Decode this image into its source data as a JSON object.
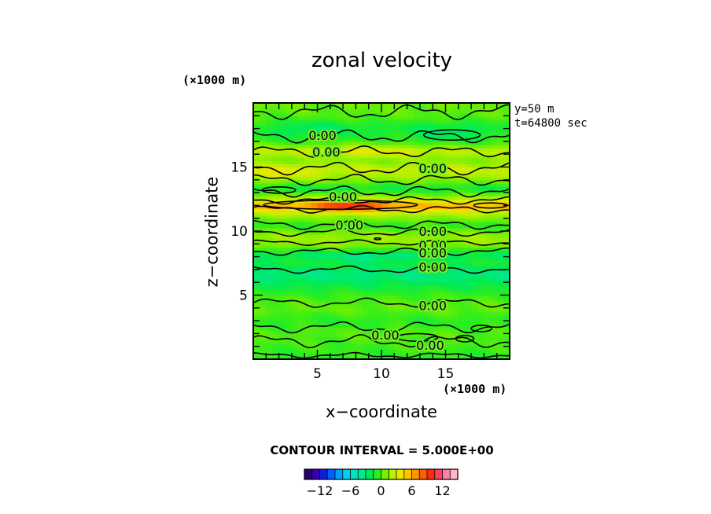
{
  "chart_data": {
    "type": "contour",
    "title": "zonal velocity",
    "xlabel": "x−coordinate",
    "ylabel": "z−coordinate",
    "x_unit": "(×1000 m)",
    "y_unit": "(×1000 m)",
    "xlim": [
      0,
      20
    ],
    "ylim": [
      0,
      20
    ],
    "x_ticks": [
      5,
      10,
      15
    ],
    "y_ticks": [
      5,
      10,
      15
    ],
    "annotations": [
      "y=50 m",
      "t=64800 sec"
    ],
    "contour_interval_text": "CONTOUR INTERVAL = 5.000E+00",
    "contour_label": "0.00",
    "contour_levels": [
      0
    ],
    "colorbar": {
      "ticks": [
        "−12",
        "−6",
        "0",
        "6",
        "12"
      ],
      "tick_values": [
        -12,
        -6,
        0,
        6,
        12
      ],
      "range": [
        -15,
        15
      ],
      "colors": [
        "#2a006f",
        "#3a00b0",
        "#0f1fd8",
        "#0060ff",
        "#00a0ff",
        "#00d2f0",
        "#00e2c0",
        "#00e890",
        "#00ea55",
        "#2ded1e",
        "#77ef00",
        "#b8f000",
        "#e6ea00",
        "#ffc600",
        "#ff9600",
        "#ff5e00",
        "#ff2a14",
        "#ff4060",
        "#ff7fa0",
        "#ffb6c8"
      ]
    },
    "contour_label_positions": [
      {
        "x": 5.4,
        "z": 17.5
      },
      {
        "x": 5.7,
        "z": 16.2
      },
      {
        "x": 14.0,
        "z": 14.9
      },
      {
        "x": 7.0,
        "z": 12.7
      },
      {
        "x": 7.5,
        "z": 10.5
      },
      {
        "x": 14.0,
        "z": 10.0
      },
      {
        "x": 14.0,
        "z": 8.9
      },
      {
        "x": 14.0,
        "z": 8.3
      },
      {
        "x": 14.0,
        "z": 7.2
      },
      {
        "x": 14.0,
        "z": 4.2
      },
      {
        "x": 10.3,
        "z": 1.9
      },
      {
        "x": 13.8,
        "z": 1.1
      }
    ],
    "field_bands": [
      {
        "z": 0.0,
        "u": -1.0
      },
      {
        "z": 1.0,
        "u": -0.5
      },
      {
        "z": 2.0,
        "u": 0.0
      },
      {
        "z": 3.0,
        "u": -1.0
      },
      {
        "z": 4.0,
        "u": 0.3
      },
      {
        "z": 5.0,
        "u": -0.5
      },
      {
        "z": 6.0,
        "u": -2.5
      },
      {
        "z": 6.7,
        "u": -3.5
      },
      {
        "z": 7.5,
        "u": -1.5
      },
      {
        "z": 8.2,
        "u": -2.5
      },
      {
        "z": 9.0,
        "u": 1.5
      },
      {
        "z": 9.7,
        "u": 1.5
      },
      {
        "z": 10.5,
        "u": -1.0
      },
      {
        "z": 11.3,
        "u": 2.0
      },
      {
        "z": 12.0,
        "u": 6.5
      },
      {
        "z": 12.6,
        "u": 2.0
      },
      {
        "z": 13.3,
        "u": -2.0
      },
      {
        "z": 14.0,
        "u": 1.0
      },
      {
        "z": 14.8,
        "u": 3.0
      },
      {
        "z": 15.5,
        "u": 1.0
      },
      {
        "z": 16.3,
        "u": 2.5
      },
      {
        "z": 17.0,
        "u": -0.5
      },
      {
        "z": 18.0,
        "u": -1.5
      },
      {
        "z": 19.0,
        "u": 0.0
      },
      {
        "z": 20.0,
        "u": 0.5
      }
    ],
    "field_spots": [
      {
        "x": 7.5,
        "z": 12.0,
        "dx": 3.0,
        "dz": 0.45,
        "u": 4.5
      },
      {
        "x": 9.0,
        "z": 7.9,
        "dx": 3.0,
        "dz": 0.5,
        "u": -1.5
      },
      {
        "x": 5.0,
        "z": 17.9,
        "dx": 3.0,
        "dz": 0.8,
        "u": -1.5
      },
      {
        "x": 15.0,
        "z": 17.6,
        "dx": 3.0,
        "dz": 0.8,
        "u": -1.5
      },
      {
        "x": 9.0,
        "z": 16.3,
        "dx": 4.0,
        "dz": 0.5,
        "u": 1.5
      },
      {
        "x": 2.0,
        "z": 14.5,
        "dx": 2.5,
        "dz": 0.6,
        "u": 1.5
      }
    ],
    "contour_lines": [
      {
        "z": 0.3,
        "amp": 0.15,
        "ph": 1.0
      },
      {
        "z": 1.4,
        "amp": 0.35,
        "ph": 0.5
      },
      {
        "z": 2.5,
        "amp": 0.3,
        "ph": 2.0
      },
      {
        "z": 4.4,
        "amp": 0.25,
        "ph": 0.0
      },
      {
        "z": 7.0,
        "amp": 0.2,
        "ph": 1.5
      },
      {
        "z": 8.4,
        "amp": 0.2,
        "ph": 3.0
      },
      {
        "z": 9.1,
        "amp": 0.15,
        "ph": 0.7
      },
      {
        "z": 9.9,
        "amp": 0.2,
        "ph": 2.2
      },
      {
        "z": 10.5,
        "amp": 0.25,
        "ph": 1.1
      },
      {
        "z": 11.7,
        "amp": 0.2,
        "ph": 0.4
      },
      {
        "z": 12.4,
        "amp": 0.2,
        "ph": 2.7
      },
      {
        "z": 13.1,
        "amp": 0.3,
        "ph": 1.9
      },
      {
        "z": 14.0,
        "amp": 0.3,
        "ph": 0.9
      },
      {
        "z": 14.9,
        "amp": 0.35,
        "ph": 2.4
      },
      {
        "z": 16.2,
        "amp": 0.3,
        "ph": 0.2
      },
      {
        "z": 17.4,
        "amp": 0.35,
        "ph": 1.6
      },
      {
        "z": 19.3,
        "amp": 0.4,
        "ph": 2.9
      }
    ],
    "closed_contours": [
      {
        "x": 6.8,
        "z": 12.05,
        "rx": 6.0,
        "rz": 0.35
      },
      {
        "x": 15.5,
        "z": 17.5,
        "rx": 2.2,
        "rz": 0.4
      },
      {
        "x": 12.8,
        "z": 1.7,
        "rx": 1.6,
        "rz": 0.3
      },
      {
        "x": 2.0,
        "z": 13.2,
        "rx": 1.3,
        "rz": 0.25
      },
      {
        "x": 18.5,
        "z": 12.0,
        "rx": 1.3,
        "rz": 0.2
      },
      {
        "x": 16.5,
        "z": 1.6,
        "rx": 0.7,
        "rz": 0.25
      },
      {
        "x": 17.8,
        "z": 2.4,
        "rx": 0.8,
        "rz": 0.25
      },
      {
        "x": 9.7,
        "z": 9.4,
        "rx": 0.25,
        "rz": 0.07
      }
    ]
  }
}
